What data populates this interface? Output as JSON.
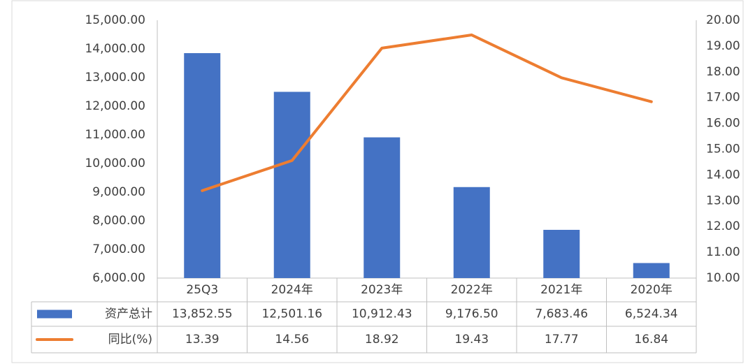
{
  "chart_data": {
    "type": "bar_line_table",
    "categories": [
      "25Q3",
      "2024年",
      "2023年",
      "2022年",
      "2021年",
      "2020年"
    ],
    "series": [
      {
        "name": "资产总计",
        "color": "#4472c4",
        "values": [
          13852.55,
          12501.16,
          10912.43,
          9176.5,
          7683.46,
          6524.34
        ],
        "value_labels": [
          "13,852.55",
          "12,501.16",
          "10,912.43",
          "9,176.50",
          "7,683.46",
          "6,524.34"
        ]
      },
      {
        "name": "同比(%)",
        "color": "#ed7d31",
        "axis": "y2",
        "values": [
          13.39,
          14.56,
          18.92,
          19.43,
          17.77,
          16.84
        ]
      }
    ],
    "ylim": [
      6000,
      15000
    ],
    "yticks": [
      {
        "value": 6000,
        "label": "6,000.00"
      },
      {
        "value": 7000,
        "label": "7,000.00"
      },
      {
        "value": 8000,
        "label": "8,000.00"
      },
      {
        "value": 9000,
        "label": "9,000.00"
      },
      {
        "value": 10000,
        "label": "10,000.00"
      },
      {
        "value": 11000,
        "label": "11,000.00"
      },
      {
        "value": 12000,
        "label": "12,000.00"
      },
      {
        "value": 13000,
        "label": "13,000.00"
      },
      {
        "value": 14000,
        "label": "14,000.00"
      },
      {
        "value": 15000,
        "label": "15,000.00"
      }
    ],
    "y2lim": [
      10,
      20
    ],
    "y2ticks": [
      {
        "value": 10,
        "label": "10.00"
      },
      {
        "value": 11,
        "label": "11.00"
      },
      {
        "value": 12,
        "label": "12.00"
      },
      {
        "value": 13,
        "label": "13.00"
      },
      {
        "value": 14,
        "label": "14.00"
      },
      {
        "value": 15,
        "label": "15.00"
      },
      {
        "value": 16,
        "label": "16.00"
      },
      {
        "value": 17,
        "label": "17.00"
      },
      {
        "value": 18,
        "label": "18.00"
      },
      {
        "value": 19,
        "label": "19.00"
      },
      {
        "value": 20,
        "label": "20.00"
      }
    ]
  }
}
